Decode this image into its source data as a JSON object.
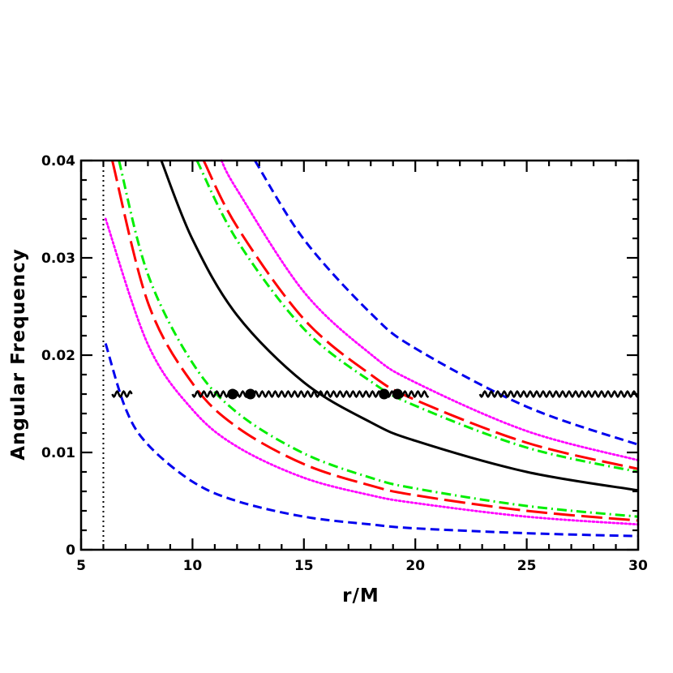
{
  "chart_data": {
    "type": "line",
    "xlabel": "r/M",
    "ylabel": "Angular Frequency",
    "xlim": [
      5,
      30
    ],
    "ylim": [
      0,
      0.04
    ],
    "x_ticks": [
      5,
      10,
      15,
      20,
      25,
      30
    ],
    "x_tick_labels": [
      "5",
      "10",
      "15",
      "20",
      "25",
      "30"
    ],
    "y_ticks": [
      0,
      0.01,
      0.02,
      0.03,
      0.04
    ],
    "y_tick_labels": [
      "0",
      "0.01",
      "0.02",
      "0.03",
      "0.04"
    ],
    "grid": false,
    "legend": "none",
    "colors": {
      "black": "#000000",
      "red": "#ff0000",
      "green": "#00ee00",
      "magenta": "#ff00ff",
      "blue": "#0000ee"
    },
    "series": [
      {
        "color": "black",
        "style": "solid",
        "x": [
          8.6,
          10,
          12,
          15,
          18,
          20,
          25,
          30
        ],
        "y": [
          0.04,
          0.0319,
          0.0241,
          0.0172,
          0.0131,
          0.0112,
          0.008,
          0.0061
        ]
      },
      {
        "color": "red",
        "style": "long-dash",
        "x": [
          10.5,
          12,
          15,
          18,
          20,
          25,
          30
        ],
        "y": [
          0.04,
          0.0332,
          0.0237,
          0.018,
          0.0154,
          0.011,
          0.0083
        ]
      },
      {
        "color": "green",
        "style": "dash-dot",
        "x": [
          10.2,
          12,
          15,
          18,
          20,
          25,
          30
        ],
        "y": [
          0.04,
          0.0318,
          0.0227,
          0.0173,
          0.0148,
          0.0105,
          0.008
        ]
      },
      {
        "color": "magenta",
        "style": "dotted",
        "x": [
          11.3,
          12,
          15,
          18,
          20,
          25,
          30
        ],
        "y": [
          0.04,
          0.037,
          0.0265,
          0.0201,
          0.0172,
          0.0122,
          0.0092
        ]
      },
      {
        "color": "blue",
        "style": "short-dash",
        "x": [
          12.8,
          15,
          18,
          20,
          25,
          30
        ],
        "y": [
          0.04,
          0.0319,
          0.0243,
          0.0207,
          0.0147,
          0.0108
        ]
      },
      {
        "color": "red",
        "style": "long-dash",
        "x": [
          6.4,
          8,
          10,
          12,
          15,
          18,
          20,
          25,
          30
        ],
        "y": [
          0.04,
          0.0254,
          0.0171,
          0.0126,
          0.0088,
          0.0066,
          0.0056,
          0.004,
          0.003
        ]
      },
      {
        "color": "green",
        "style": "dash-dot",
        "x": [
          6.7,
          8,
          10,
          12,
          15,
          18,
          20,
          25,
          30
        ],
        "y": [
          0.04,
          0.0283,
          0.0192,
          0.0141,
          0.0099,
          0.0074,
          0.0063,
          0.0045,
          0.0034
        ]
      },
      {
        "color": "magenta",
        "style": "dotted",
        "x": [
          6.1,
          8,
          10,
          12,
          15,
          18,
          20,
          25,
          30
        ],
        "y": [
          0.034,
          0.0211,
          0.0144,
          0.0106,
          0.0074,
          0.0056,
          0.0048,
          0.0034,
          0.0026
        ]
      },
      {
        "color": "blue",
        "style": "short-dash",
        "x": [
          6.1,
          7,
          8,
          10,
          12,
          15,
          18,
          20,
          25,
          30
        ],
        "y": [
          0.0212,
          0.0145,
          0.0108,
          0.007,
          0.005,
          0.0034,
          0.0026,
          0.0022,
          0.0017,
          0.0014
        ]
      }
    ],
    "reference_line": {
      "x": 6,
      "style": "dotted",
      "color": "black"
    },
    "wavy_line_segments": [
      {
        "y": 0.016,
        "x": [
          6.4,
          7.3
        ]
      },
      {
        "y": 0.016,
        "x": [
          10.0,
          20.6
        ]
      },
      {
        "y": 0.016,
        "x": [
          22.9,
          30.0
        ]
      }
    ],
    "marked_points": {
      "x": [
        11.8,
        12.6,
        18.6,
        19.2
      ],
      "y": [
        0.016,
        0.016,
        0.016,
        0.016
      ]
    }
  }
}
